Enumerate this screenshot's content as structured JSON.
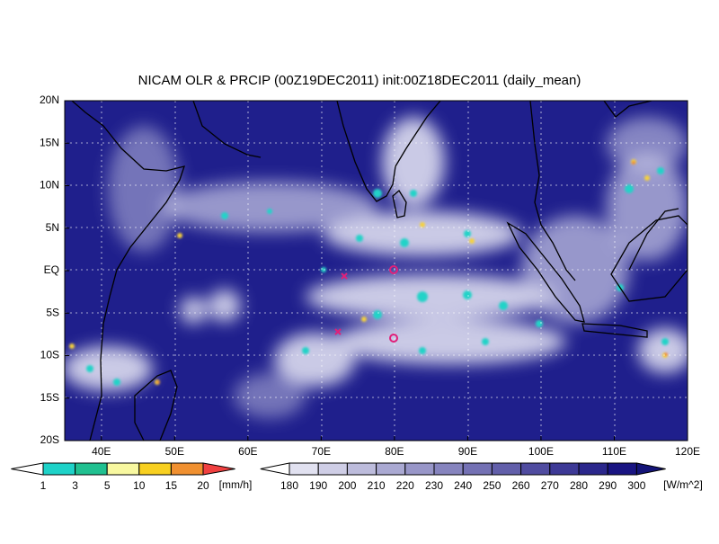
{
  "title": "NICAM OLR & PRCIP (00Z19DEC2011) init:00Z18DEC2011 (daily_mean)",
  "lat_labels": [
    "20N",
    "15N",
    "10N",
    "5N",
    "EQ",
    "5S",
    "10S",
    "15S",
    "20S"
  ],
  "lon_labels": [
    "40E",
    "50E",
    "60E",
    "70E",
    "80E",
    "90E",
    "100E",
    "110E",
    "120E"
  ],
  "precip_legend": {
    "labels": [
      "1",
      "3",
      "5",
      "10",
      "15",
      "20"
    ],
    "unit": "[mm/h]"
  },
  "olr_legend": {
    "labels": [
      "180",
      "190",
      "200",
      "210",
      "220",
      "230",
      "240",
      "250",
      "260",
      "270",
      "280",
      "290",
      "300"
    ],
    "unit": "[W/m^2]"
  }
}
